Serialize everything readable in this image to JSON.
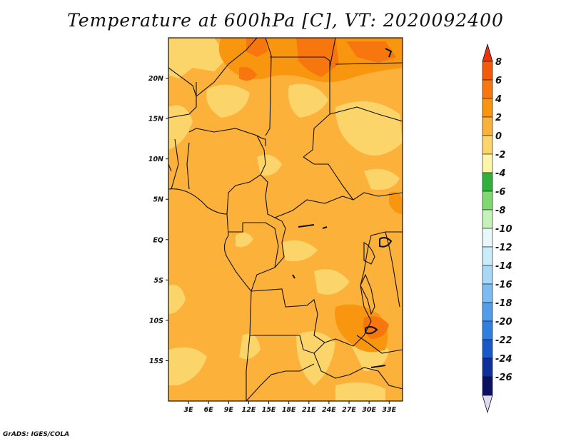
{
  "title": "Temperature at 600hPa [C], VT: 2020092400",
  "footer": "GrADS: IGES/COLA",
  "map": {
    "lon_range": [
      0,
      35
    ],
    "lat_range": [
      -20,
      25
    ],
    "y_ticks": [
      {
        "label": "20N",
        "lat": 20
      },
      {
        "label": "15N",
        "lat": 15
      },
      {
        "label": "10N",
        "lat": 10
      },
      {
        "label": "5N",
        "lat": 5
      },
      {
        "label": "EQ",
        "lat": 0
      },
      {
        "label": "5S",
        "lat": -5
      },
      {
        "label": "10S",
        "lat": -10
      },
      {
        "label": "15S",
        "lat": -15
      }
    ],
    "x_ticks": [
      {
        "label": "3E",
        "lon": 3
      },
      {
        "label": "6E",
        "lon": 6
      },
      {
        "label": "9E",
        "lon": 9
      },
      {
        "label": "12E",
        "lon": 12
      },
      {
        "label": "15E",
        "lon": 15
      },
      {
        "label": "18E",
        "lon": 18
      },
      {
        "label": "21E",
        "lon": 21
      },
      {
        "label": "24E",
        "lon": 24
      },
      {
        "label": "27E",
        "lon": 27
      },
      {
        "label": "30E",
        "lon": 30
      },
      {
        "label": "33E",
        "lon": 33
      }
    ]
  },
  "colorbar": {
    "levels": [
      "8",
      "6",
      "4",
      "2",
      "0",
      "-2",
      "-4",
      "-6",
      "-8",
      "-10",
      "-12",
      "-14",
      "-16",
      "-18",
      "-20",
      "-22",
      "-24",
      "-26"
    ],
    "colors": [
      "#e8350e",
      "#f25a0c",
      "#f7770e",
      "#f9960f",
      "#fbb13a",
      "#fcd56a",
      "#fdf6a8",
      "#2fb13a",
      "#7fd870",
      "#c5f2b8",
      "#e8f8f8",
      "#c9ecf9",
      "#a9d7f8",
      "#7dbbf3",
      "#539ce9",
      "#2f7ee0",
      "#1858c8",
      "#0f2f9a",
      "#0a1160",
      "#dcdcf4"
    ]
  },
  "regions": {
    "base_color": "#fbb13a",
    "cool_color": "#fcd56a",
    "warm_color": "#f9960f",
    "hot_color": "#f7770e"
  }
}
